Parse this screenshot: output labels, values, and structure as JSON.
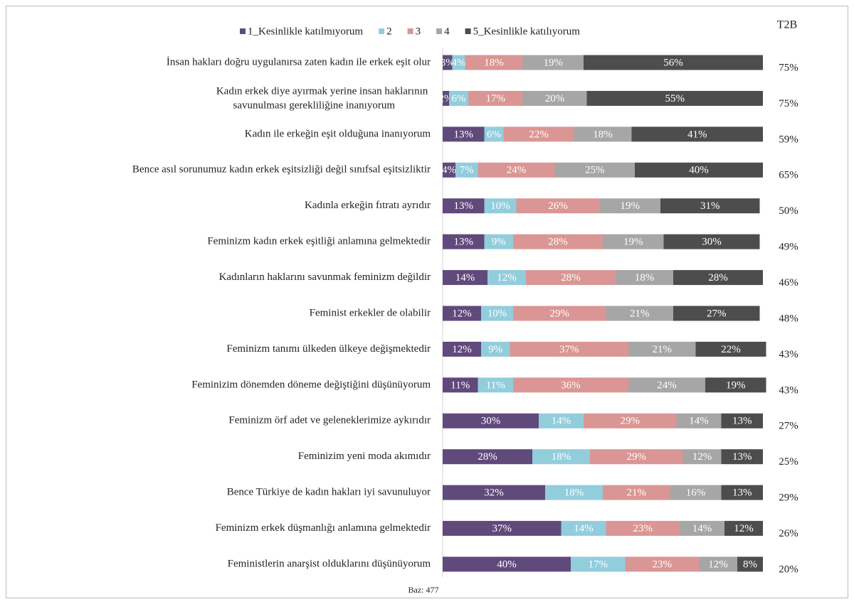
{
  "chart_data": {
    "type": "stacked-bar-horizontal",
    "categories": [
      "İnsan hakları doğru uygulanırsa zaten kadın ile erkek eşit olur",
      "Kadın erkek diye ayırmak yerine insan haklarının savunulması gerekliliğine inanıyorum",
      "Kadın ile erkeğin eşit olduğuna inanıyorum",
      "Bence asıl sorunumuz kadın erkek eşitsizliği değil sınıfsal eşitsizliktir",
      "Kadınla erkeğin fıtratı ayrıdır",
      "Feminizm kadın erkek eşitliği anlamına gelmektedir",
      "Kadınların haklarını savunmak feminizm değildir",
      "Feminist erkekler de olabilir",
      "Feminizm tanımı ülkeden ülkeye değişmektedir",
      "Feminizim dönemden döneme değiştiğini düşünüyorum",
      "Feminizm örf adet ve geleneklerimize aykırıdır",
      "Feminizim yeni moda akımıdır",
      "Bence Türkiye de kadın hakları iyi savunuluyor",
      "Feminizm erkek düşmanlığı anlamına gelmektedir",
      "Feministlerin anarşist olduklarını düşünüyorum"
    ],
    "series": [
      {
        "name": "1_Kesinlikle katılmıyorum",
        "color": "#604a7b",
        "values": [
          3,
          2,
          13,
          4,
          13,
          13,
          14,
          12,
          12,
          11,
          30,
          28,
          32,
          37,
          40
        ],
        "value_labels": [
          "3%",
          "2%",
          "13%",
          "4%",
          "13%",
          "13%",
          "14%",
          "12%",
          "12%",
          "11%",
          "30%",
          "28%",
          "32%",
          "37%",
          "40%"
        ]
      },
      {
        "name": "2",
        "color": "#92cddc",
        "values": [
          4,
          6,
          6,
          7,
          10,
          9,
          12,
          10,
          9,
          11,
          14,
          18,
          18,
          14,
          17
        ],
        "value_labels": [
          "4%",
          "6%",
          "6%",
          "7%",
          "10%",
          "9%",
          "12%",
          "10%",
          "9%",
          "11%",
          "14%",
          "18%",
          "18%",
          "14%",
          "17%"
        ]
      },
      {
        "name": "3",
        "color": "#da9694",
        "values": [
          18,
          17,
          22,
          24,
          26,
          28,
          28,
          29,
          37,
          36,
          29,
          29,
          21,
          23,
          23
        ],
        "value_labels": [
          "18%",
          "17%",
          "22%",
          "24%",
          "26%",
          "28%",
          "28%",
          "29%",
          "37%",
          "36%",
          "29%",
          "29%",
          "21%",
          "23%",
          "23%"
        ]
      },
      {
        "name": "4",
        "color": "#a6a6a6",
        "values": [
          19,
          20,
          18,
          25,
          19,
          19,
          18,
          21,
          21,
          24,
          14,
          12,
          16,
          14,
          12
        ],
        "value_labels": [
          "19%",
          "20%",
          "18%",
          "25%",
          "19%",
          "19%",
          "18%",
          "21%",
          "21%",
          "24%",
          "14%",
          "12%",
          "16%",
          "14%",
          "12%"
        ]
      },
      {
        "name": "5_Kesinlikle katılıyorum",
        "color": "#4d4d4d",
        "values": [
          56,
          55,
          41,
          40,
          31,
          30,
          28,
          27,
          22,
          19,
          13,
          13,
          13,
          12,
          8
        ],
        "value_labels": [
          "56%",
          "55%",
          "41%",
          "40%",
          "31%",
          "30%",
          "28%",
          "27%",
          "22%",
          "19%",
          "13%",
          "13%",
          "13%",
          "12%",
          "8%"
        ]
      }
    ],
    "t2b_title": "T2B",
    "t2b": [
      75,
      75,
      59,
      65,
      50,
      49,
      46,
      48,
      43,
      43,
      27,
      25,
      29,
      26,
      20
    ],
    "t2b_labels": [
      "75%",
      "75%",
      "59%",
      "65%",
      "50%",
      "49%",
      "46%",
      "48%",
      "43%",
      "43%",
      "27%",
      "25%",
      "29%",
      "26%",
      "20%"
    ],
    "xlim": [
      0,
      100
    ],
    "legend": "top",
    "note": "Baz: 477"
  }
}
